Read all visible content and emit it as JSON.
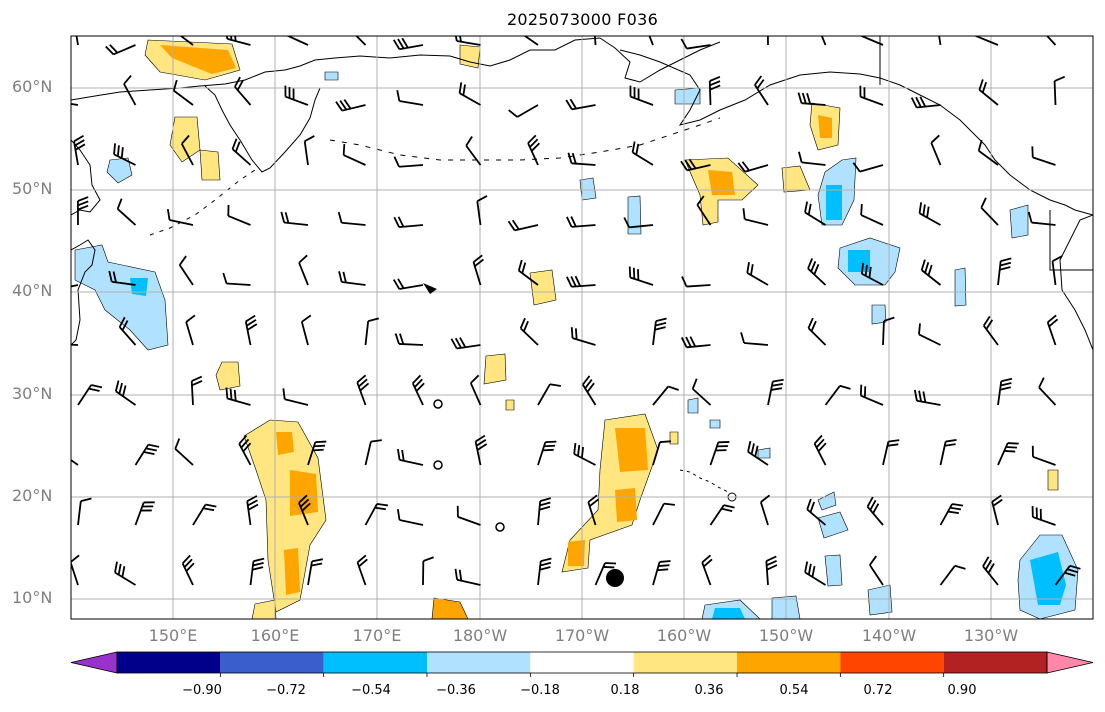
{
  "title": "2025073000 F036",
  "map": {
    "lat_labels": [
      "60°N",
      "50°N",
      "40°N",
      "30°N",
      "20°N",
      "10°N"
    ],
    "lon_labels": [
      "150°E",
      "160°E",
      "170°E",
      "180°W",
      "170°W",
      "160°W",
      "150°W",
      "140°W",
      "130°W"
    ],
    "extent": {
      "lon_min": 140,
      "lon_max": 240,
      "lat_min": 8,
      "lat_max": 65
    },
    "storm_center": {
      "lon": 194,
      "lat": 12
    },
    "graticule": true
  },
  "colorbar": {
    "tick_labels": [
      "−0.90",
      "−0.72",
      "−0.54",
      "−0.36",
      "−0.18",
      "0.18",
      "0.36",
      "0.54",
      "0.72",
      "0.90"
    ],
    "colors": [
      "#9932cc",
      "#00008b",
      "#3a5fcd",
      "#00bfff",
      "#b0e2ff",
      "#ffffff",
      "#ffe680",
      "#ffa500",
      "#ff4500",
      "#b22222",
      "#ff88aa"
    ],
    "extend": "both"
  },
  "legend_colors": {
    "coast": "#000000",
    "grid": "#b0b0b0",
    "label": "#7f7f7f"
  }
}
